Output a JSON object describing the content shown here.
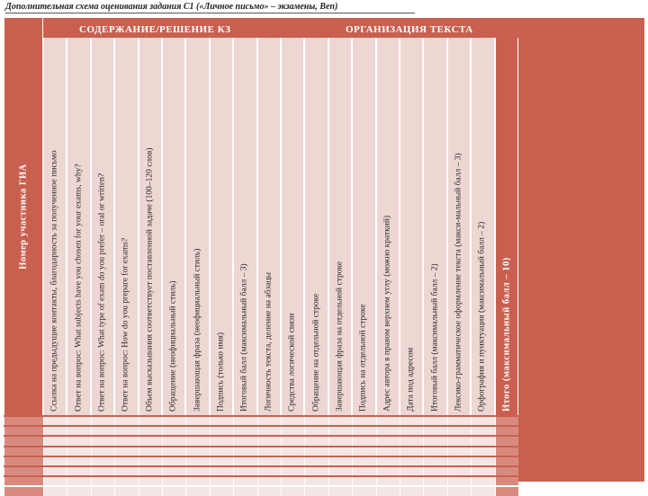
{
  "title": "Дополнительная схема оценивания задания С1 («Личное письмо» – экзамены, Веп)",
  "row_header": "Номер участника ГИА",
  "groups": {
    "content": "СОДЕРЖАНИЕ/РЕШЕНИЕ КЗ",
    "organization": "ОРГАНИЗАЦИЯ ТЕКСТА"
  },
  "columns": [
    "Ссылка на предыдущие контакты, благодарность за полученное письмо",
    "Ответ на вопрос: What subjects have you chosen for your exams, why?",
    "Ответ на вопрос: What type of exam do you prefer – oral or written?",
    "Ответ на вопрос: How do you prepare for exams?",
    "Объем высказывания соответствует поставленной задаче (100–120 слов)",
    "Обращение (неофициальный стиль)",
    "Завершающая фраза (неофициальный стиль)",
    "Подпись (только имя)",
    "Итоговый балл (максимальный балл – 3)",
    "Логичность текста, деление на абзацы",
    "Средства логической связи",
    "Обращение на отдельной строке",
    "Завершающая фраза на отдельной строке",
    "Подпись на отдельной строке",
    "Адрес автора в правом верхнем углу (можно краткий)",
    "Дата под адресом",
    "Итоговый балл (максимальный балл – 2)",
    "Лексико-грамматическое оформление текста (макси-мальный балл – 3)",
    "Орфография и пунктуация (максимальный балл – 2)",
    "Итого (максимальный балл – 10)"
  ],
  "empty_rows": 8
}
